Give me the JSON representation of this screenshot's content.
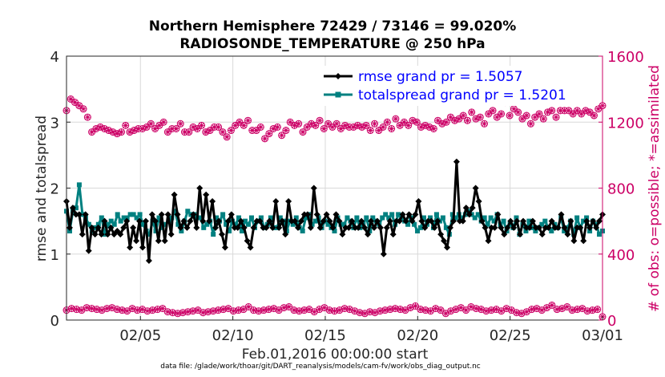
{
  "chart_data": {
    "type": "line",
    "title_line1": "Northern Hemisphere 72429 / 73146 = 99.020%",
    "title_line2": "RADIOSONDE_TEMPERATURE @ 250 hPa",
    "xlabel": "Feb.01,2016 00:00:00 start",
    "ylabel_left": "rmse and totalspread",
    "ylabel_right": "# of obs: o=possible; *=assimilated",
    "footnote": "data file: /glade/work/thoar/git/DART_reanalysis/models/cam-fv/work/obs_diag_output.nc",
    "x_ticks": [
      "02/05",
      "02/10",
      "02/15",
      "02/20",
      "02/25",
      "03/01"
    ],
    "x_tick_days": [
      5,
      10,
      15,
      20,
      25,
      30
    ],
    "xlim": [
      1,
      30
    ],
    "ylim_left": [
      0,
      4
    ],
    "y_ticks_left": [
      "0",
      "1",
      "2",
      "3",
      "4"
    ],
    "ylim_right": [
      0,
      1600
    ],
    "y_ticks_right": [
      "0",
      "400",
      "800",
      "1200",
      "1600"
    ],
    "grid": true,
    "legend_position": "top-right",
    "colors": {
      "rmse": "#000000",
      "spread": "#008080",
      "obs": "#cc0066",
      "legend_text": "#0000ff",
      "axis": "#262626"
    },
    "series": [
      {
        "name": "rmse grand pr = 1.5057",
        "key": "rmse",
        "values": [
          1.8,
          1.4,
          1.7,
          1.6,
          1.6,
          1.3,
          1.6,
          1.05,
          1.4,
          1.3,
          1.4,
          1.3,
          1.5,
          1.3,
          1.4,
          1.3,
          1.35,
          1.3,
          1.4,
          1.5,
          1.1,
          1.4,
          1.2,
          1.5,
          1.1,
          1.5,
          0.9,
          1.6,
          1.5,
          1.2,
          1.6,
          1.2,
          1.6,
          1.3,
          1.9,
          1.6,
          1.4,
          1.5,
          1.4,
          1.5,
          1.6,
          1.4,
          2.0,
          1.5,
          1.9,
          1.5,
          1.8,
          1.4,
          1.5,
          1.3,
          1.1,
          1.5,
          1.6,
          1.4,
          1.4,
          1.5,
          1.4,
          1.2,
          1.1,
          1.4,
          1.5,
          1.5,
          1.4,
          1.4,
          1.5,
          1.4,
          1.8,
          1.4,
          1.5,
          1.3,
          1.8,
          1.5,
          1.5,
          1.4,
          1.5,
          1.6,
          1.6,
          1.4,
          2.0,
          1.6,
          1.4,
          1.5,
          1.6,
          1.5,
          1.4,
          1.6,
          1.5,
          1.3,
          1.4,
          1.4,
          1.5,
          1.4,
          1.4,
          1.5,
          1.4,
          1.3,
          1.5,
          1.4,
          1.5,
          1.4,
          1.0,
          1.4,
          1.5,
          1.3,
          1.5,
          1.5,
          1.6,
          1.5,
          1.6,
          1.5,
          1.6,
          1.8,
          1.5,
          1.4,
          1.5,
          1.5,
          1.4,
          1.5,
          1.3,
          1.2,
          1.1,
          1.4,
          1.5,
          2.4,
          1.5,
          1.5,
          1.7,
          1.6,
          1.7,
          2.0,
          1.8,
          1.5,
          1.4,
          1.2,
          1.4,
          1.4,
          1.6,
          1.4,
          1.3,
          1.4,
          1.5,
          1.4,
          1.5,
          1.3,
          1.5,
          1.4,
          1.4,
          1.5,
          1.4,
          1.4,
          1.3,
          1.4,
          1.4,
          1.5,
          1.4,
          1.4,
          1.6,
          1.4,
          1.3,
          1.5,
          1.2,
          1.4,
          1.4,
          1.2,
          1.5,
          1.4,
          1.5,
          1.4,
          1.5,
          1.6
        ]
      },
      {
        "name": "totalspread grand pr = 1.5201",
        "key": "spread",
        "values": [
          1.65,
          1.35,
          1.65,
          1.7,
          2.05,
          1.6,
          1.55,
          1.45,
          1.35,
          1.4,
          1.45,
          1.55,
          1.3,
          1.45,
          1.5,
          1.45,
          1.6,
          1.5,
          1.55,
          1.55,
          1.6,
          1.6,
          1.55,
          1.6,
          1.45,
          1.35,
          1.3,
          1.5,
          1.35,
          1.55,
          1.4,
          1.45,
          1.5,
          1.55,
          1.65,
          1.45,
          1.35,
          1.5,
          1.65,
          1.6,
          1.6,
          1.55,
          1.55,
          1.4,
          1.45,
          1.5,
          1.3,
          1.55,
          1.5,
          1.6,
          1.45,
          1.35,
          1.5,
          1.45,
          1.55,
          1.35,
          1.5,
          1.45,
          1.55,
          1.4,
          1.5,
          1.55,
          1.4,
          1.45,
          1.55,
          1.4,
          1.4,
          1.55,
          1.5,
          1.35,
          1.5,
          1.45,
          1.55,
          1.4,
          1.35,
          1.55,
          1.6,
          1.45,
          1.5,
          1.55,
          1.4,
          1.5,
          1.45,
          1.4,
          1.35,
          1.55,
          1.45,
          1.45,
          1.55,
          1.5,
          1.4,
          1.55,
          1.4,
          1.45,
          1.55,
          1.35,
          1.55,
          1.5,
          1.45,
          1.55,
          1.6,
          1.55,
          1.6,
          1.45,
          1.6,
          1.55,
          1.5,
          1.45,
          1.55,
          1.45,
          1.35,
          1.4,
          1.55,
          1.45,
          1.55,
          1.4,
          1.6,
          1.5,
          1.55,
          1.4,
          1.3,
          1.6,
          1.55,
          1.6,
          1.55,
          1.6,
          1.65,
          1.6,
          1.55,
          1.6,
          1.5,
          1.55,
          1.45,
          1.55,
          1.5,
          1.6,
          1.45,
          1.5,
          1.35,
          1.45,
          1.4,
          1.55,
          1.3,
          1.45,
          1.35,
          1.5,
          1.4,
          1.35,
          1.4,
          1.45,
          1.5,
          1.4,
          1.35,
          1.45,
          1.4,
          1.55,
          1.35,
          1.4,
          1.5,
          1.3,
          1.55,
          1.4,
          1.5,
          1.55,
          1.35,
          1.5,
          1.45,
          1.3,
          1.35
        ]
      },
      {
        "name": "possible",
        "key": "obs_upper",
        "values": [
          1270,
          1340,
          1320,
          1300,
          1280,
          1230,
          1140,
          1160,
          1170,
          1160,
          1150,
          1140,
          1130,
          1140,
          1180,
          1140,
          1150,
          1160,
          1160,
          1170,
          1190,
          1160,
          1180,
          1200,
          1140,
          1160,
          1160,
          1190,
          1140,
          1140,
          1170,
          1160,
          1180,
          1140,
          1150,
          1170,
          1170,
          1140,
          1110,
          1150,
          1180,
          1200,
          1180,
          1210,
          1150,
          1150,
          1170,
          1100,
          1130,
          1160,
          1170,
          1120,
          1150,
          1200,
          1180,
          1190,
          1140,
          1170,
          1190,
          1180,
          1210,
          1160,
          1190,
          1170,
          1190,
          1160,
          1180,
          1170,
          1170,
          1180,
          1170,
          1180,
          1150,
          1190,
          1150,
          1170,
          1200,
          1160,
          1220,
          1180,
          1200,
          1180,
          1210,
          1200,
          1170,
          1180,
          1170,
          1160,
          1210,
          1190,
          1200,
          1230,
          1210,
          1220,
          1240,
          1210,
          1260,
          1220,
          1230,
          1190,
          1250,
          1270,
          1230,
          1250,
          1320,
          1240,
          1280,
          1260,
          1220,
          1240,
          1190,
          1230,
          1250,
          1220,
          1260,
          1270,
          1230,
          1270,
          1270,
          1270,
          1250,
          1270,
          1250,
          1270,
          1260,
          1240,
          1280,
          1300
        ]
      },
      {
        "name": "assimilated",
        "key": "obs_lower",
        "values": [
          60,
          70,
          65,
          60,
          75,
          70,
          65,
          60,
          70,
          75,
          65,
          60,
          55,
          70,
          60,
          65,
          55,
          60,
          65,
          70,
          50,
          45,
          40,
          45,
          50,
          55,
          60,
          45,
          50,
          55,
          60,
          65,
          70,
          55,
          60,
          65,
          80,
          60,
          55,
          60,
          65,
          70,
          60,
          75,
          80,
          60,
          55,
          60,
          65,
          50,
          65,
          75,
          60,
          55,
          60,
          70,
          65,
          55,
          45,
          40,
          50,
          45,
          55,
          60,
          65,
          70,
          65,
          60,
          75,
          85,
          65,
          60,
          55,
          70,
          60,
          40,
          55,
          65,
          75,
          60,
          80,
          70,
          65,
          55,
          60,
          65,
          55,
          70,
          60,
          45,
          40,
          50,
          65,
          70,
          60,
          75,
          90,
          65,
          70,
          80,
          60,
          65,
          70,
          55,
          60,
          65,
          20
        ]
      }
    ]
  }
}
